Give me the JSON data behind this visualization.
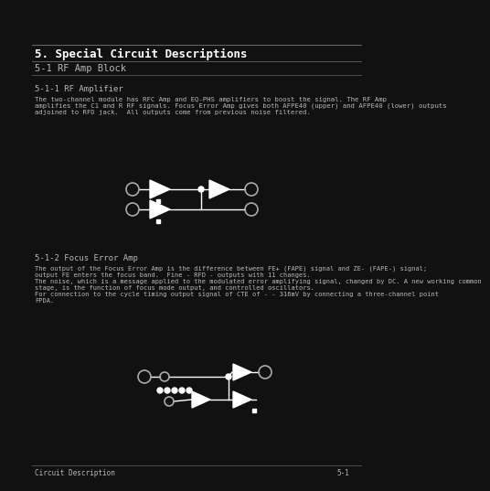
{
  "background_color": "#111111",
  "text_color": "#b8b8b8",
  "title_text": "5. Special Circuit Descriptions",
  "subtitle_text": "5-1 RF Amp Block",
  "section1_title": "5-1-1 RF Amplifier",
  "section1_body": "The two-channel module has RFC Amp and EQ-PHS amplifiers to boost the signal. The RF Amp\namplifies the C1 and R RF signals. Focus Error Amp gives both AFPE40 (upper) and AFPE40 (lower) outputs\nadjoined to RFD jack.  All outputs come from previous noise filtered.",
  "section2_title": "5-1-2 Focus Error Amp",
  "section2_body": "The output of the Focus Error Amp is the difference between FE+ (FAPE) signal and ZE- (FAPE-) signal;\noutput FE enters the focus band.  Fine - RFD - outputs with 11 changes.\nThe noise, which is a message applied to the modulated error amplifying signal, changed by DC. A new working common\nstage, is the function of focus mode output, and controlled oscillators.\nFor connection to the cycle timing output signal of CTE of - - 316mV by connecting a three-channel point\nFPDA.",
  "page_left": "Circuit Description",
  "page_right": "5-1",
  "rule_color": "#666666",
  "white": "#ffffff",
  "gray_circle": "#aaaaaa"
}
